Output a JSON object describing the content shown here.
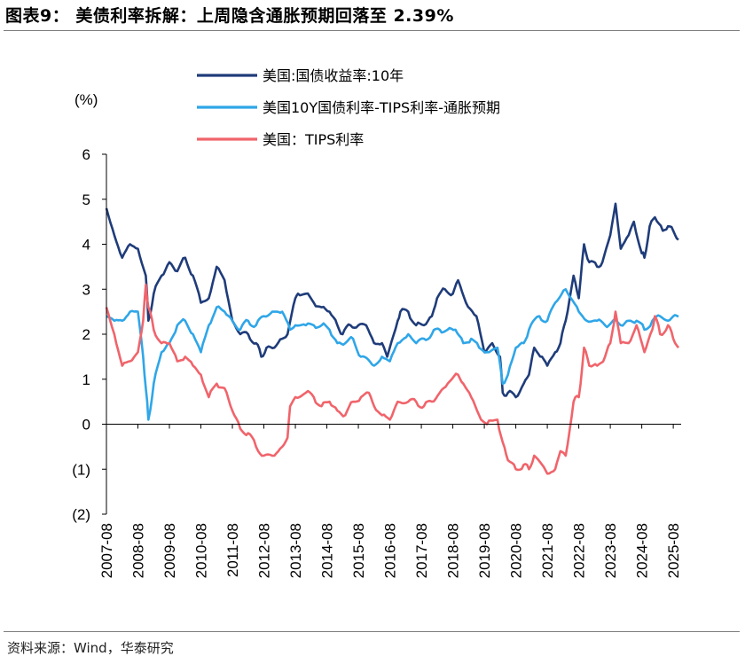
{
  "header": {
    "title": "图表9： 美债利率拆解：上周隐含通胀预期回落至 2.39%"
  },
  "footer": {
    "source": "资料来源：Wind，华泰研究"
  },
  "chart_data": {
    "type": "line",
    "ylabel": "(%)",
    "ylim": [
      -2,
      6
    ],
    "yticks": [
      {
        "value": 6,
        "label": "6"
      },
      {
        "value": 5,
        "label": "5"
      },
      {
        "value": 4,
        "label": "4"
      },
      {
        "value": 3,
        "label": "3"
      },
      {
        "value": 2,
        "label": "2"
      },
      {
        "value": 1,
        "label": "1"
      },
      {
        "value": 0,
        "label": "0"
      },
      {
        "value": -1,
        "label": "(1)"
      },
      {
        "value": -2,
        "label": "(2)"
      }
    ],
    "xlim": [
      "2007-08",
      "2025-11"
    ],
    "xticks": [
      "2007-08",
      "2008-08",
      "2009-08",
      "2010-08",
      "2011-08",
      "2012-08",
      "2013-08",
      "2014-08",
      "2015-08",
      "2016-08",
      "2017-08",
      "2018-08",
      "2019-08",
      "2020-08",
      "2021-08",
      "2022-08",
      "2023-08",
      "2024-08",
      "2025-08"
    ],
    "legend_position": "top",
    "series": [
      {
        "name": "美国:国债收益率:10年",
        "color": "#1f3c7a",
        "x": [
          "2007-08",
          "2007-11",
          "2008-02",
          "2008-05",
          "2008-08",
          "2008-11",
          "2008-12",
          "2009-02",
          "2009-05",
          "2009-08",
          "2009-11",
          "2010-02",
          "2010-05",
          "2010-08",
          "2010-11",
          "2011-02",
          "2011-05",
          "2011-08",
          "2011-11",
          "2012-02",
          "2012-05",
          "2012-07",
          "2012-09",
          "2012-12",
          "2013-03",
          "2013-05",
          "2013-08",
          "2013-09",
          "2013-12",
          "2014-03",
          "2014-06",
          "2014-09",
          "2014-12",
          "2015-02",
          "2015-05",
          "2015-08",
          "2015-11",
          "2016-02",
          "2016-05",
          "2016-07",
          "2016-11",
          "2016-12",
          "2017-03",
          "2017-06",
          "2017-09",
          "2017-12",
          "2018-02",
          "2018-05",
          "2018-08",
          "2018-10",
          "2019-01",
          "2019-05",
          "2019-08",
          "2019-11",
          "2020-02",
          "2020-03",
          "2020-05",
          "2020-08",
          "2020-11",
          "2021-01",
          "2021-03",
          "2021-06",
          "2021-08",
          "2021-11",
          "2022-01",
          "2022-03",
          "2022-06",
          "2022-08",
          "2022-10",
          "2022-12",
          "2023-03",
          "2023-05",
          "2023-08",
          "2023-10",
          "2023-12",
          "2024-03",
          "2024-05",
          "2024-08",
          "2024-09",
          "2024-11",
          "2025-01",
          "2025-04",
          "2025-06",
          "2025-08",
          "2025-10"
        ],
        "values": [
          4.8,
          4.2,
          3.7,
          4.0,
          3.9,
          3.3,
          2.3,
          2.9,
          3.3,
          3.6,
          3.4,
          3.7,
          3.3,
          2.7,
          2.8,
          3.5,
          3.2,
          2.3,
          2.0,
          2.0,
          1.8,
          1.5,
          1.7,
          1.7,
          1.9,
          2.0,
          2.8,
          2.9,
          2.9,
          2.7,
          2.6,
          2.5,
          2.2,
          2.0,
          2.2,
          2.2,
          2.2,
          1.8,
          1.8,
          1.5,
          2.3,
          2.5,
          2.5,
          2.2,
          2.2,
          2.4,
          2.8,
          3.0,
          2.9,
          3.2,
          2.7,
          2.4,
          1.6,
          1.8,
          1.5,
          0.7,
          0.7,
          0.6,
          0.9,
          1.1,
          1.7,
          1.5,
          1.3,
          1.6,
          1.8,
          2.3,
          3.3,
          2.8,
          4.0,
          3.6,
          3.5,
          3.6,
          4.2,
          4.9,
          3.9,
          4.2,
          4.5,
          3.8,
          3.7,
          4.4,
          4.6,
          4.3,
          4.4,
          4.3,
          4.1
        ]
      },
      {
        "name": "美国10Y国债利率-TIPS利率-通胀预期",
        "color": "#2fa6e8",
        "x": [
          "2007-08",
          "2007-11",
          "2008-02",
          "2008-05",
          "2008-08",
          "2008-10",
          "2008-11",
          "2008-12",
          "2009-02",
          "2009-05",
          "2009-08",
          "2009-11",
          "2010-02",
          "2010-05",
          "2010-08",
          "2010-11",
          "2011-02",
          "2011-05",
          "2011-08",
          "2011-11",
          "2012-02",
          "2012-05",
          "2012-08",
          "2012-12",
          "2013-03",
          "2013-06",
          "2013-08",
          "2013-12",
          "2014-03",
          "2014-06",
          "2014-09",
          "2014-12",
          "2015-03",
          "2015-06",
          "2015-09",
          "2016-02",
          "2016-05",
          "2016-08",
          "2016-11",
          "2017-03",
          "2017-06",
          "2017-09",
          "2017-12",
          "2018-03",
          "2018-06",
          "2018-09",
          "2018-12",
          "2019-03",
          "2019-06",
          "2019-09",
          "2020-01",
          "2020-03",
          "2020-05",
          "2020-08",
          "2020-11",
          "2021-01",
          "2021-05",
          "2021-08",
          "2021-11",
          "2022-03",
          "2022-05",
          "2022-08",
          "2022-11",
          "2023-03",
          "2023-06",
          "2023-09",
          "2023-12",
          "2024-03",
          "2024-06",
          "2024-09",
          "2024-12",
          "2025-03",
          "2025-06",
          "2025-08",
          "2025-10"
        ],
        "values": [
          2.4,
          2.3,
          2.3,
          2.5,
          2.5,
          1.5,
          0.8,
          0.1,
          0.9,
          1.6,
          1.8,
          2.2,
          2.3,
          2.0,
          1.6,
          2.2,
          2.6,
          2.5,
          2.3,
          2.1,
          2.3,
          2.2,
          2.4,
          2.5,
          2.5,
          2.1,
          2.2,
          2.2,
          2.2,
          2.2,
          2.1,
          1.8,
          1.8,
          1.9,
          1.5,
          1.3,
          1.5,
          1.4,
          1.8,
          2.0,
          1.8,
          1.9,
          2.0,
          2.1,
          2.1,
          2.1,
          1.8,
          1.9,
          1.7,
          1.6,
          1.7,
          0.9,
          1.1,
          1.7,
          1.8,
          2.1,
          2.4,
          2.3,
          2.7,
          3.0,
          2.8,
          2.5,
          2.3,
          2.3,
          2.2,
          2.3,
          2.2,
          2.3,
          2.3,
          2.1,
          2.3,
          2.4,
          2.3,
          2.4,
          2.39
        ]
      },
      {
        "name": "美国：TIPS利率",
        "color": "#f0646b",
        "x": [
          "2007-08",
          "2007-11",
          "2008-02",
          "2008-05",
          "2008-08",
          "2008-10",
          "2008-11",
          "2008-12",
          "2009-02",
          "2009-05",
          "2009-08",
          "2009-11",
          "2010-02",
          "2010-05",
          "2010-08",
          "2010-11",
          "2011-02",
          "2011-05",
          "2011-08",
          "2011-11",
          "2012-02",
          "2012-05",
          "2012-08",
          "2012-12",
          "2013-03",
          "2013-05",
          "2013-06",
          "2013-08",
          "2013-12",
          "2014-03",
          "2014-06",
          "2014-09",
          "2014-12",
          "2015-03",
          "2015-06",
          "2015-09",
          "2015-12",
          "2016-02",
          "2016-05",
          "2016-08",
          "2016-11",
          "2017-03",
          "2017-06",
          "2017-09",
          "2017-12",
          "2018-03",
          "2018-06",
          "2018-10",
          "2018-12",
          "2019-03",
          "2019-06",
          "2019-09",
          "2020-01",
          "2020-03",
          "2020-05",
          "2020-08",
          "2020-11",
          "2021-01",
          "2021-03",
          "2021-06",
          "2021-08",
          "2021-11",
          "2022-01",
          "2022-03",
          "2022-06",
          "2022-08",
          "2022-10",
          "2022-12",
          "2023-03",
          "2023-06",
          "2023-08",
          "2023-10",
          "2023-12",
          "2024-03",
          "2024-06",
          "2024-09",
          "2024-12",
          "2025-01",
          "2025-03",
          "2025-06",
          "2025-08",
          "2025-10"
        ],
        "values": [
          2.6,
          2.0,
          1.3,
          1.4,
          1.6,
          2.3,
          3.1,
          2.6,
          2.1,
          1.8,
          1.8,
          1.4,
          1.5,
          1.3,
          1.1,
          0.6,
          0.9,
          0.8,
          0.3,
          -0.1,
          -0.2,
          -0.5,
          -0.7,
          -0.7,
          -0.5,
          -0.3,
          0.4,
          0.6,
          0.7,
          0.6,
          0.4,
          0.5,
          0.3,
          0.2,
          0.5,
          0.6,
          0.7,
          0.4,
          0.2,
          0.1,
          0.5,
          0.5,
          0.5,
          0.4,
          0.5,
          0.7,
          0.9,
          1.1,
          0.9,
          0.6,
          0.2,
          0.0,
          0.1,
          -0.4,
          -0.8,
          -1.0,
          -0.9,
          -1.0,
          -0.7,
          -0.9,
          -1.1,
          -1.0,
          -0.6,
          -0.7,
          0.5,
          0.6,
          1.7,
          1.3,
          1.3,
          1.5,
          1.8,
          2.5,
          1.8,
          1.8,
          2.2,
          1.6,
          2.1,
          2.4,
          2.0,
          2.2,
          1.9,
          1.7
        ]
      }
    ]
  }
}
